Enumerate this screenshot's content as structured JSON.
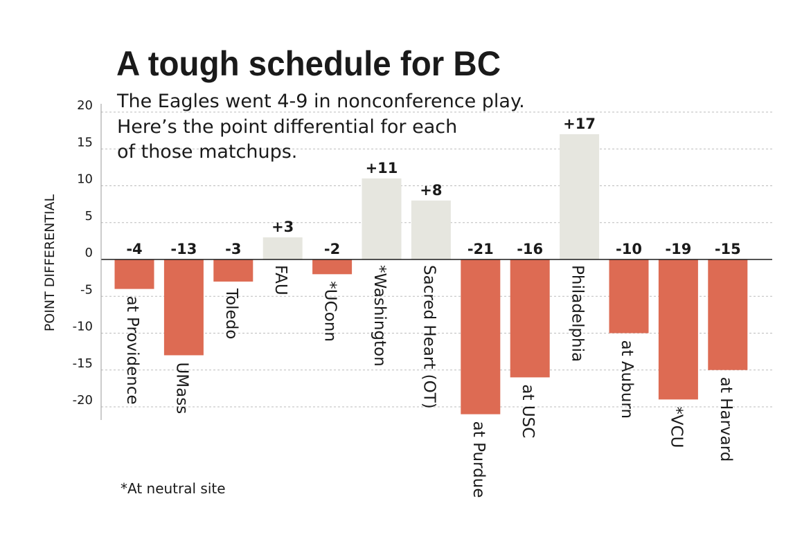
{
  "chart_data": {
    "type": "bar",
    "title": "A tough schedule for BC",
    "subtitle": [
      "The Eagles went 4-9 in nonconference play.",
      "Here’s the point differential for each",
      "of those matchups."
    ],
    "ylabel": "POINT DIFFERENTIAL",
    "ylim": [
      -22,
      22
    ],
    "yticks": [
      20,
      15,
      10,
      5,
      0,
      -5,
      -10,
      -15,
      -20
    ],
    "categories": [
      "at Providence",
      "UMass",
      "Toledo",
      "FAU",
      "*UConn",
      "*Washington",
      "Sacred Heart (OT)",
      "at Purdue",
      "at USC",
      "Philadelphia",
      "at Auburn",
      "*VCU",
      "at Harvard"
    ],
    "values": [
      -4,
      -13,
      -3,
      3,
      -2,
      11,
      8,
      -21,
      -16,
      17,
      -10,
      -19,
      -15
    ],
    "value_labels": [
      "-4",
      "-13",
      "-3",
      "+3",
      "-2",
      "+11",
      "+8",
      "-21",
      "-16",
      "+17",
      "-10",
      "-19",
      "-15"
    ],
    "colors": {
      "positive": "#e6e6df",
      "negative": "#dd6b53",
      "text": "#1a1a1a",
      "axis": "#999999",
      "grid": "#bbbbbb"
    },
    "grid": true,
    "footnote": "*At neutral site"
  }
}
